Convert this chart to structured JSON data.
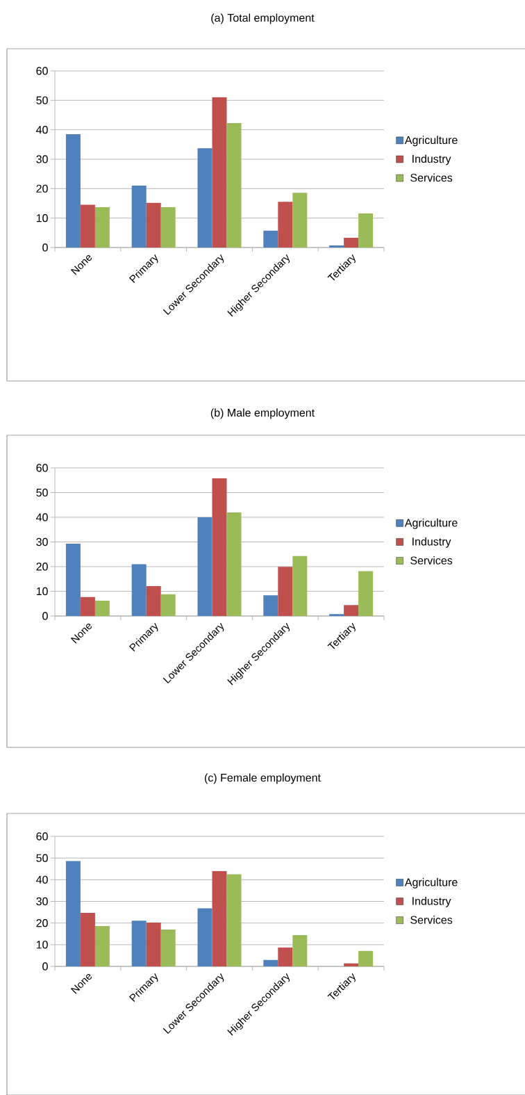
{
  "chart_data": [
    {
      "type": "bar",
      "title": "(a) Total employment",
      "categories": [
        "None",
        "Primary",
        "Lower Secondary",
        "Higher Secondary",
        "Tertiary"
      ],
      "ylim": [
        0,
        60
      ],
      "yticks": [
        0,
        10,
        20,
        30,
        40,
        50,
        60
      ],
      "grid": "y",
      "legend": "right",
      "series": [
        {
          "name": "Agriculture",
          "color": "#4f81bd",
          "values": [
            38.5,
            21.0,
            33.7,
            5.7,
            0.7
          ]
        },
        {
          "name": "Industry",
          "color": "#c0504d",
          "values": [
            14.5,
            15.2,
            51.1,
            15.5,
            3.3
          ]
        },
        {
          "name": "Services",
          "color": "#9bbb59",
          "values": [
            13.7,
            13.7,
            42.3,
            18.6,
            11.6
          ]
        }
      ]
    },
    {
      "type": "bar",
      "title": "(b) Male employment",
      "categories": [
        "None",
        "Primary",
        "Lower Secondary",
        "Higher Secondary",
        "Tertiary"
      ],
      "ylim": [
        0,
        60
      ],
      "yticks": [
        0,
        10,
        20,
        30,
        40,
        50,
        60
      ],
      "grid": "y",
      "legend": "right",
      "series": [
        {
          "name": "Agriculture",
          "color": "#4f81bd",
          "values": [
            29.3,
            21.0,
            40.0,
            8.4,
            0.8
          ]
        },
        {
          "name": "Industry",
          "color": "#c0504d",
          "values": [
            7.7,
            12.1,
            55.8,
            19.9,
            4.4
          ]
        },
        {
          "name": "Services",
          "color": "#9bbb59",
          "values": [
            6.2,
            8.8,
            42.0,
            24.3,
            18.2
          ]
        }
      ]
    },
    {
      "type": "bar",
      "title": "(c) Female employment",
      "categories": [
        "None",
        "Primary",
        "Lower Secondary",
        "Higher Secondary",
        "Tertiary"
      ],
      "ylim": [
        0,
        60
      ],
      "yticks": [
        0,
        10,
        20,
        30,
        40,
        50,
        60
      ],
      "grid": "y",
      "legend": "right",
      "series": [
        {
          "name": "Agriculture",
          "color": "#4f81bd",
          "values": [
            48.6,
            21.1,
            26.8,
            3.0,
            0
          ]
        },
        {
          "name": "Industry",
          "color": "#c0504d",
          "values": [
            24.7,
            20.2,
            44.0,
            8.7,
            1.4
          ]
        },
        {
          "name": "Services",
          "color": "#9bbb59",
          "values": [
            18.6,
            17.0,
            42.5,
            14.4,
            7.1
          ]
        }
      ]
    }
  ]
}
